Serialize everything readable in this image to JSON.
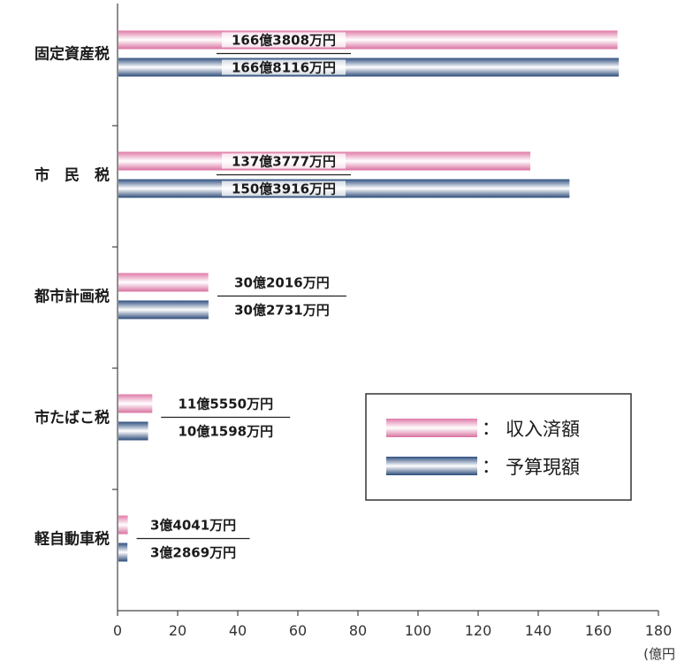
{
  "chart_data": {
    "type": "bar",
    "orientation": "horizontal",
    "categories": [
      "固定資産税",
      "市　民　税",
      "都市計画税",
      "市たばこ税",
      "軽自動車税"
    ],
    "series": [
      {
        "name": "収入済額",
        "values": [
          166.3808,
          137.3777,
          30.2016,
          11.555,
          3.4041
        ],
        "labels": [
          "166億3808万円",
          "137億3777万円",
          "30億2016万円",
          "11億5550万円",
          "3億4041万円"
        ],
        "color": "#e8a0c0"
      },
      {
        "name": "予算現額",
        "values": [
          166.8116,
          150.3916,
          30.2731,
          10.1598,
          3.2869
        ],
        "labels": [
          "166億8116万円",
          "150億3916万円",
          "30億2731万円",
          "10億1598万円",
          "3億2869万円"
        ],
        "color": "#3f5f8f"
      }
    ],
    "xlim": [
      0,
      180
    ],
    "xticks": [
      "0",
      "20",
      "40",
      "60",
      "80",
      "100",
      "120",
      "140",
      "160",
      "180"
    ],
    "unit": "(億円",
    "legend": {
      "placement": "bottom-right",
      "items": [
        {
          "marker": "：",
          "label": "収入済額"
        },
        {
          "marker": "：",
          "label": "予算現額"
        }
      ]
    },
    "grid": false
  }
}
